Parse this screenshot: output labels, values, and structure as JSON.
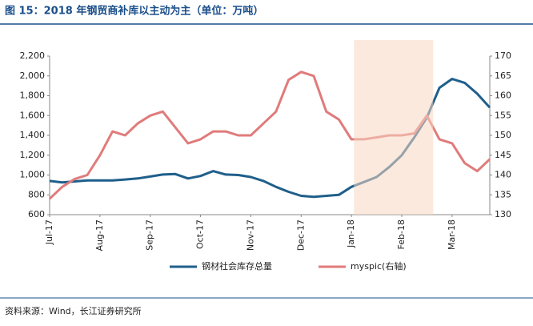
{
  "chart_data": {
    "type": "line",
    "title": "图 15：2018 年钢贸商补库以主动为主（单位：万吨）",
    "source": "资料来源：Wind，长江证券研究所",
    "categories": [
      "Jul-17",
      null,
      null,
      null,
      "Aug-17",
      null,
      null,
      null,
      "Sep-17",
      null,
      null,
      null,
      "Oct-17",
      null,
      null,
      null,
      "Nov-17",
      null,
      null,
      null,
      "Dec-17",
      null,
      null,
      null,
      "Jan-18",
      null,
      null,
      null,
      "Feb-18",
      null,
      null,
      null,
      "Mar-18",
      null,
      null,
      null
    ],
    "series": [
      {
        "name": "钢材社会库存总量",
        "color": "#1f5f8b",
        "axis": "y",
        "values": [
          940,
          925,
          935,
          945,
          945,
          945,
          955,
          965,
          985,
          1005,
          1010,
          965,
          990,
          1040,
          1005,
          1000,
          980,
          940,
          880,
          830,
          790,
          780,
          790,
          800,
          880,
          930,
          980,
          1080,
          1200,
          1380,
          1580,
          1880,
          1970,
          1930,
          1820,
          1680
        ]
      },
      {
        "name": "myspic(右轴)",
        "color": "#e07b7b",
        "axis": "y2",
        "values": [
          134,
          137,
          139,
          140,
          145,
          151,
          150,
          153,
          155,
          156,
          152,
          148,
          149,
          151,
          151,
          150,
          150,
          153,
          156,
          164,
          166,
          165,
          156,
          154,
          149,
          149,
          149.5,
          150,
          150,
          150.5,
          155,
          149,
          148,
          143,
          141,
          144
        ]
      }
    ],
    "shaded_range": [
      24.2,
      30.5
    ],
    "ylim": [
      600,
      2200
    ],
    "yticks": [
      600,
      800,
      {
        "value": 1000,
        "label": "1,000"
      },
      {
        "value": 1200,
        "label": "1,200"
      },
      {
        "value": 1400,
        "label": "1,400"
      },
      {
        "value": 1600,
        "label": "1,600"
      },
      {
        "value": 1800,
        "label": "1,800"
      },
      {
        "value": 2000,
        "label": "2,000"
      },
      {
        "value": 2200,
        "label": "2,200"
      }
    ],
    "y2lim": [
      130,
      170
    ],
    "y2ticks": [
      130,
      135,
      140,
      145,
      150,
      155,
      160,
      165,
      170
    ],
    "grid": false,
    "legend": "bottom"
  }
}
